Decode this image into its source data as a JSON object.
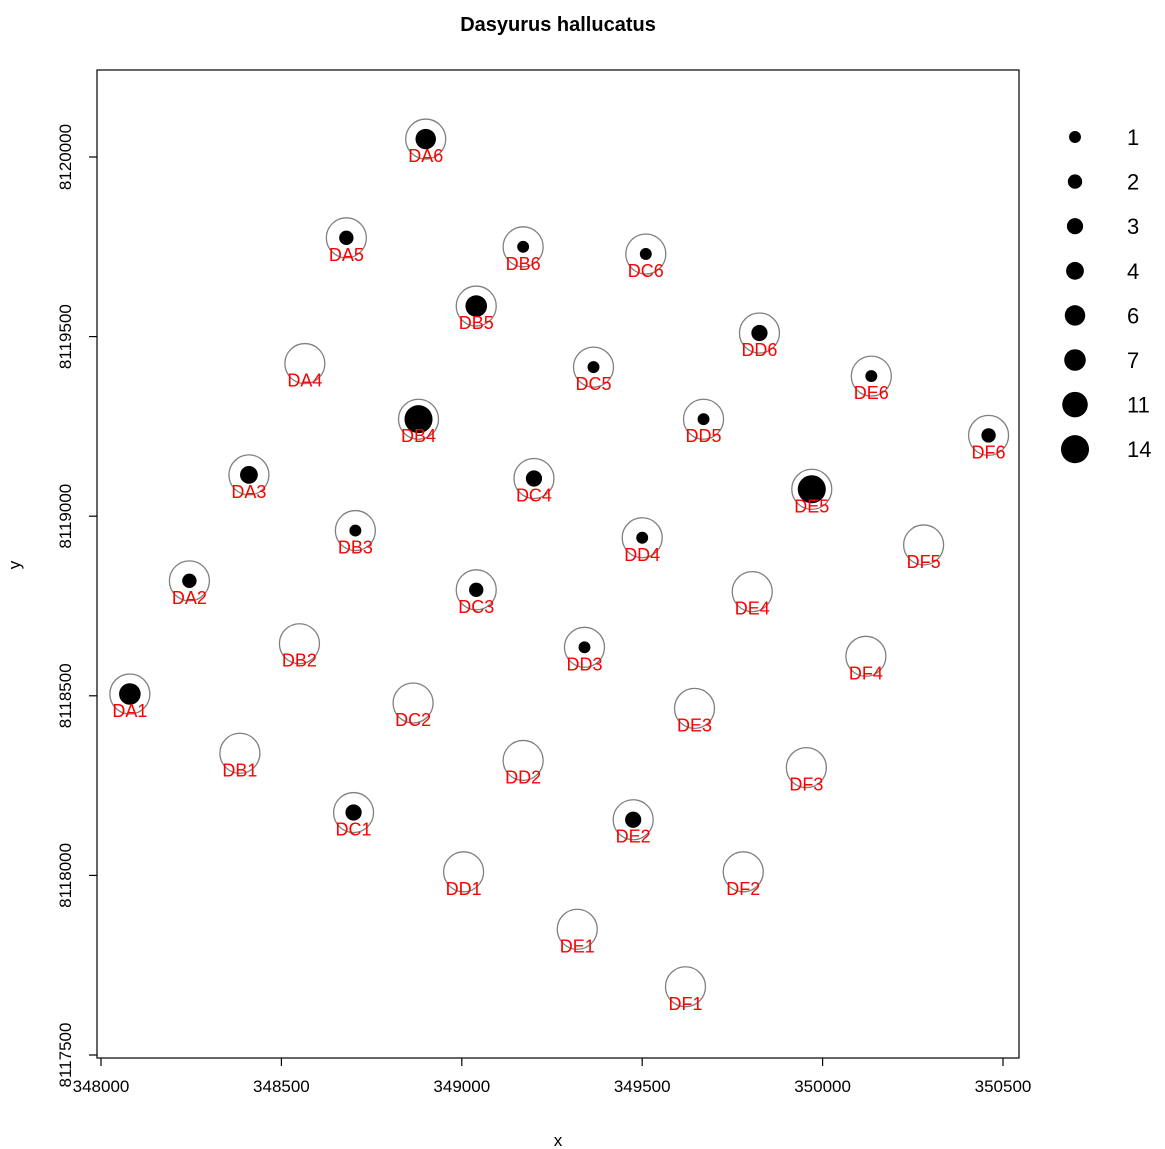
{
  "chart_data": {
    "type": "scatter",
    "title": "Dasyurus hallucatus",
    "xlabel": "x",
    "ylabel": "y",
    "xlim": [
      348000,
      350500
    ],
    "ylim": [
      8117500,
      8120200
    ],
    "x_ticks": [
      "348000",
      "348500",
      "349000",
      "349500",
      "350000",
      "350500"
    ],
    "y_ticks": [
      "8117500",
      "8118000",
      "8118500",
      "8119000",
      "8119500",
      "8120000"
    ],
    "grid": false,
    "legend_position": "right",
    "colors": {
      "trap_label": "#ff0000",
      "trap_ring": "#808080",
      "point": "#000000"
    },
    "traps": [
      {
        "id": "DA1",
        "x": 348080,
        "y": 8118505,
        "count": 7
      },
      {
        "id": "DA2",
        "x": 348245,
        "y": 8118820,
        "count": 2
      },
      {
        "id": "DA3",
        "x": 348410,
        "y": 8119115,
        "count": 4
      },
      {
        "id": "DA4",
        "x": 348565,
        "y": 8119425,
        "count": 0
      },
      {
        "id": "DA5",
        "x": 348680,
        "y": 8119775,
        "count": 2
      },
      {
        "id": "DA6",
        "x": 348900,
        "y": 8120050,
        "count": 6
      },
      {
        "id": "DB1",
        "x": 348385,
        "y": 8118340,
        "count": 0
      },
      {
        "id": "DB2",
        "x": 348550,
        "y": 8118645,
        "count": 0
      },
      {
        "id": "DB3",
        "x": 348705,
        "y": 8118960,
        "count": 1
      },
      {
        "id": "DB4",
        "x": 348880,
        "y": 8119270,
        "count": 14
      },
      {
        "id": "DB5",
        "x": 349040,
        "y": 8119585,
        "count": 7
      },
      {
        "id": "DB6",
        "x": 349170,
        "y": 8119750,
        "count": 1
      },
      {
        "id": "DC1",
        "x": 348700,
        "y": 8118175,
        "count": 3
      },
      {
        "id": "DC2",
        "x": 348865,
        "y": 8118480,
        "count": 0
      },
      {
        "id": "DC3",
        "x": 349040,
        "y": 8118795,
        "count": 2
      },
      {
        "id": "DC4",
        "x": 349200,
        "y": 8119105,
        "count": 3
      },
      {
        "id": "DC5",
        "x": 349365,
        "y": 8119415,
        "count": 1
      },
      {
        "id": "DC6",
        "x": 349510,
        "y": 8119730,
        "count": 1
      },
      {
        "id": "DD1",
        "x": 349005,
        "y": 8118010,
        "count": 0
      },
      {
        "id": "DD2",
        "x": 349170,
        "y": 8118320,
        "count": 0
      },
      {
        "id": "DD3",
        "x": 349340,
        "y": 8118635,
        "count": 1
      },
      {
        "id": "DD4",
        "x": 349500,
        "y": 8118940,
        "count": 1
      },
      {
        "id": "DD5",
        "x": 349670,
        "y": 8119270,
        "count": 1
      },
      {
        "id": "DD6",
        "x": 349825,
        "y": 8119510,
        "count": 3
      },
      {
        "id": "DE1",
        "x": 349320,
        "y": 8117850,
        "count": 0
      },
      {
        "id": "DE2",
        "x": 349475,
        "y": 8118155,
        "count": 3
      },
      {
        "id": "DE3",
        "x": 349645,
        "y": 8118465,
        "count": 0
      },
      {
        "id": "DE4",
        "x": 349805,
        "y": 8118790,
        "count": 0
      },
      {
        "id": "DE5",
        "x": 349970,
        "y": 8119075,
        "count": 14
      },
      {
        "id": "DE6",
        "x": 350135,
        "y": 8119390,
        "count": 1
      },
      {
        "id": "DF1",
        "x": 349620,
        "y": 8117690,
        "count": 0
      },
      {
        "id": "DF2",
        "x": 349780,
        "y": 8118010,
        "count": 0
      },
      {
        "id": "DF3",
        "x": 349955,
        "y": 8118300,
        "count": 0
      },
      {
        "id": "DF4",
        "x": 350120,
        "y": 8118610,
        "count": 0
      },
      {
        "id": "DF5",
        "x": 350280,
        "y": 8118920,
        "count": 0
      },
      {
        "id": "DF6",
        "x": 350460,
        "y": 8119225,
        "count": 2
      }
    ],
    "legend": [
      {
        "label": "1",
        "value": 1
      },
      {
        "label": "2",
        "value": 2
      },
      {
        "label": "3",
        "value": 3
      },
      {
        "label": "4",
        "value": 4
      },
      {
        "label": "6",
        "value": 6
      },
      {
        "label": "7",
        "value": 7
      },
      {
        "label": "11",
        "value": 11
      },
      {
        "label": "14",
        "value": 14
      }
    ]
  }
}
